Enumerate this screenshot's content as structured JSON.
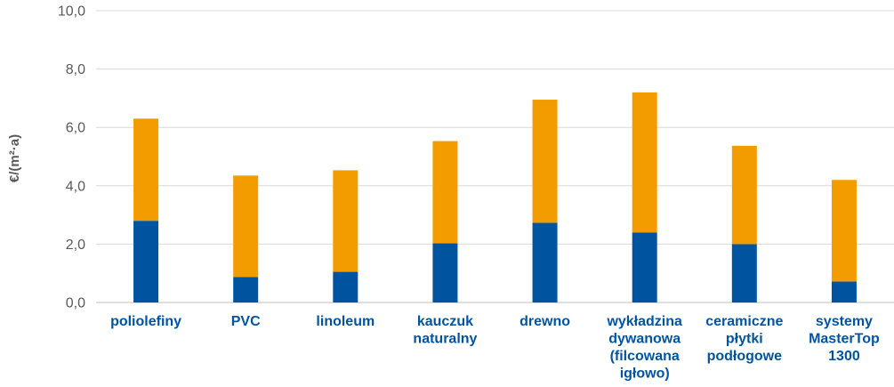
{
  "chart_data": {
    "type": "bar",
    "stacked": true,
    "title": "",
    "xlabel": "",
    "ylabel": "€/(m²·a)",
    "ylim": [
      0,
      10
    ],
    "yticks": [
      "0,0",
      "2,0",
      "4,0",
      "6,0",
      "8,0",
      "10,0"
    ],
    "yticks_values": [
      0,
      2,
      4,
      6,
      8,
      10
    ],
    "grid": true,
    "legend": "none",
    "categories": [
      "poliolefiny",
      "PVC",
      "linoleum",
      "kauczuk naturalny",
      "drewno",
      "wykładzina dywanowa (filcowana igłowo)",
      "ceramiczne płytki podłogowe",
      "systemy MasterTop 1300"
    ],
    "category_label_lines": [
      [
        "poliolefiny"
      ],
      [
        "PVC"
      ],
      [
        "linoleum"
      ],
      [
        "kauczuk",
        "naturalny"
      ],
      [
        "drewno"
      ],
      [
        "wykładzina",
        "dywanowa",
        "(filcowana",
        "igłowo)"
      ],
      [
        "ceramiczne",
        "płytki",
        "podłogowe"
      ],
      [
        "systemy",
        "MasterTop",
        "1300"
      ]
    ],
    "series": [
      {
        "color": "#00549f",
        "values": [
          2.8,
          0.87,
          1.05,
          2.03,
          2.73,
          2.4,
          2.0,
          0.72
        ]
      },
      {
        "color": "#f39c00",
        "values": [
          3.5,
          3.48,
          3.48,
          3.5,
          4.22,
          4.8,
          3.37,
          3.48
        ]
      }
    ]
  },
  "colors": {
    "label_text": "#00549f",
    "tick_text": "#595959",
    "grid": "#d9d9d9"
  }
}
